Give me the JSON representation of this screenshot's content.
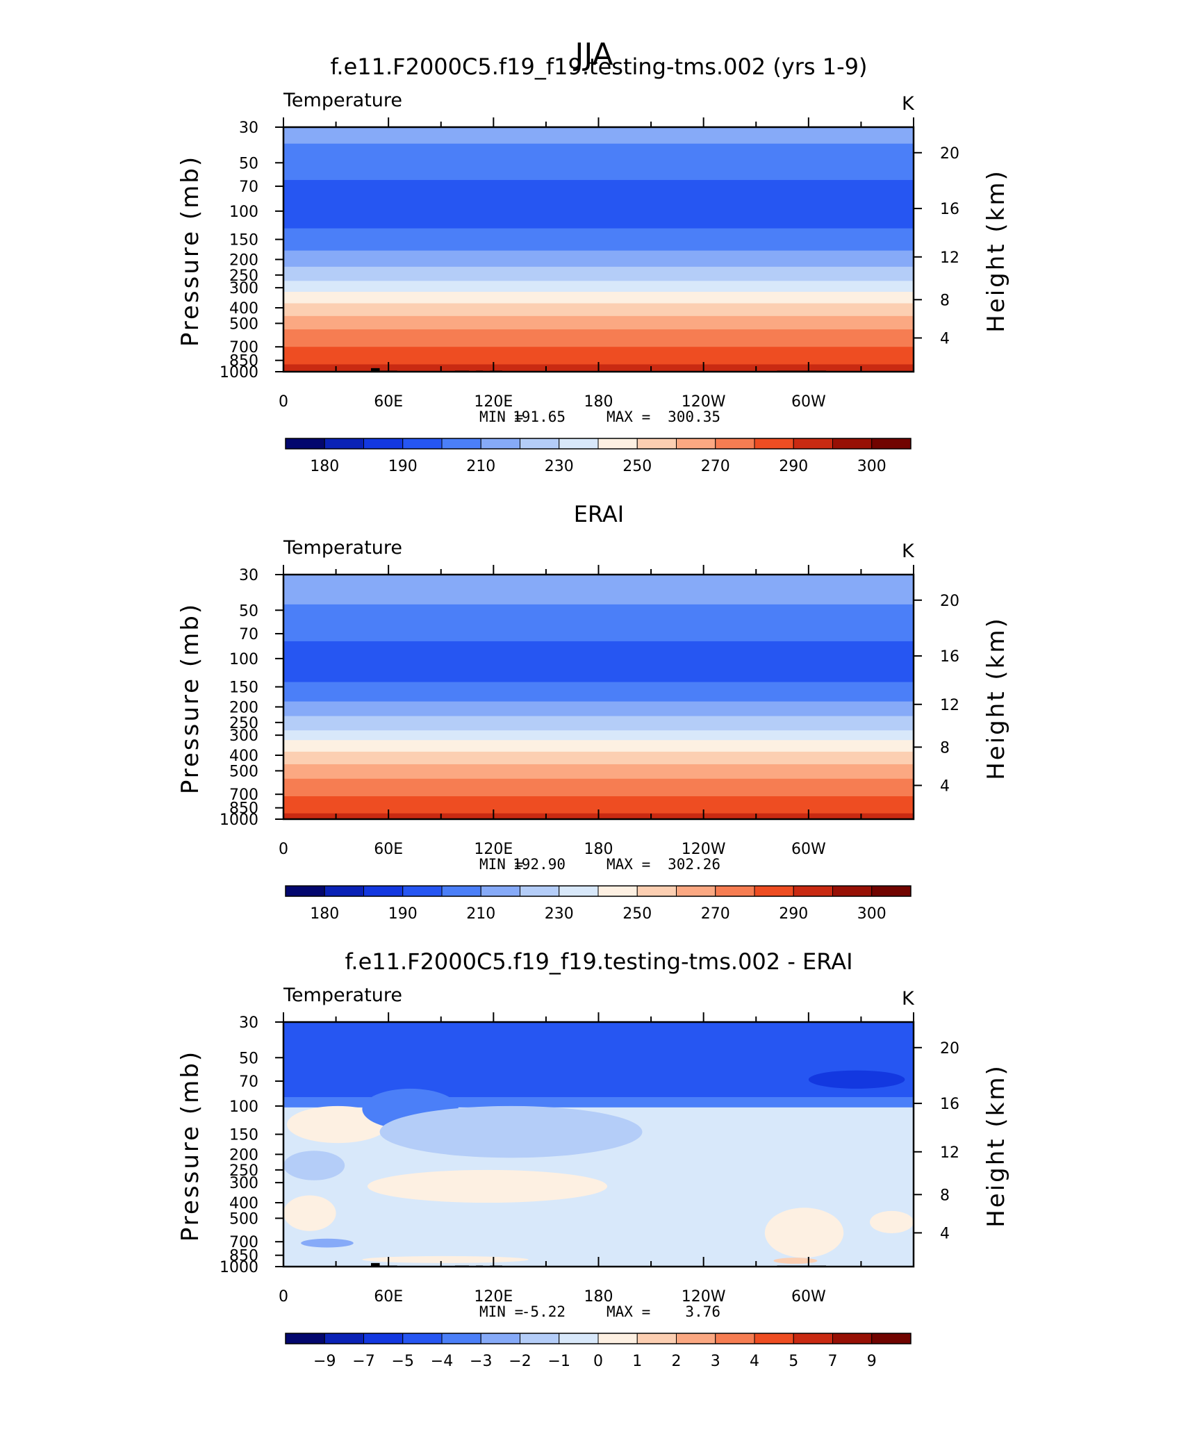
{
  "figure_title": "JJA",
  "chart_data": [
    {
      "type": "heatmap",
      "title": "f.e11.F2000C5.f19_f19.testing-tms.002 (yrs 1-9)",
      "variable": "Temperature",
      "units": "K",
      "ylabel": "Pressure (mb)",
      "ylabel_right": "Height (km)",
      "x_ticks": [
        "0",
        "60E",
        "120E",
        "180",
        "120W",
        "60W"
      ],
      "y_ticks": [
        "30",
        "50",
        "70",
        "100",
        "150",
        "200",
        "250",
        "300",
        "400",
        "500",
        "700",
        "850",
        "1000"
      ],
      "height_ticks": [
        "20",
        "16",
        "12",
        "8",
        "4"
      ],
      "ylim": [
        1000,
        30
      ],
      "xlim": [
        0,
        360
      ],
      "log_scale": true,
      "min_label": "MIN =",
      "min_value": "191.65",
      "max_label": "MAX =",
      "max_value": "300.35",
      "colorbar_labels": [
        "180",
        "190",
        "210",
        "230",
        "250",
        "270",
        "290",
        "300"
      ],
      "colorbar_colors": [
        "#03076e",
        "#0a22b6",
        "#1338e0",
        "#2656f2",
        "#4b7ff8",
        "#86aaf8",
        "#b4cdf8",
        "#d8e8fa",
        "#fdf0e2",
        "#fccfb2",
        "#fba882",
        "#f67d52",
        "#ee4d22",
        "#c92a12",
        "#971005",
        "#710400"
      ],
      "layers": [
        {
          "p": 30,
          "color": "#86aaf8"
        },
        {
          "p": 38,
          "color": "#4b7ff8"
        },
        {
          "p": 64,
          "color": "#2656f2"
        },
        {
          "p": 128,
          "color": "#4b7ff8"
        },
        {
          "p": 176,
          "color": "#86aaf8"
        },
        {
          "p": 222,
          "color": "#b4cdf8"
        },
        {
          "p": 272,
          "color": "#d8e8fa"
        },
        {
          "p": 318,
          "color": "#fdf0e2"
        },
        {
          "p": 375,
          "color": "#fccfb2"
        },
        {
          "p": 450,
          "color": "#fba882"
        },
        {
          "p": 545,
          "color": "#f67d52"
        },
        {
          "p": 700,
          "color": "#ee4d22"
        },
        {
          "p": 900,
          "color": "#c92a12"
        }
      ],
      "topography_blocks": [
        [
          15,
          50,
          990
        ],
        [
          50,
          55,
          950
        ],
        [
          55,
          65,
          985
        ],
        [
          98,
          106,
          985
        ],
        [
          110,
          114,
          985
        ],
        [
          118,
          125,
          985
        ],
        [
          282,
          310,
          985
        ]
      ]
    },
    {
      "type": "heatmap",
      "title": "ERAI",
      "variable": "Temperature",
      "units": "K",
      "ylabel": "Pressure (mb)",
      "ylabel_right": "Height (km)",
      "x_ticks": [
        "0",
        "60E",
        "120E",
        "180",
        "120W",
        "60W"
      ],
      "y_ticks": [
        "30",
        "50",
        "70",
        "100",
        "150",
        "200",
        "250",
        "300",
        "400",
        "500",
        "700",
        "850",
        "1000"
      ],
      "height_ticks": [
        "20",
        "16",
        "12",
        "8",
        "4"
      ],
      "ylim": [
        1000,
        30
      ],
      "xlim": [
        0,
        360
      ],
      "log_scale": true,
      "min_label": "MIN =",
      "min_value": "192.90",
      "max_label": "MAX =",
      "max_value": "302.26",
      "colorbar_labels": [
        "180",
        "190",
        "210",
        "230",
        "250",
        "270",
        "290",
        "300"
      ],
      "colorbar_colors": [
        "#03076e",
        "#0a22b6",
        "#1338e0",
        "#2656f2",
        "#4b7ff8",
        "#86aaf8",
        "#b4cdf8",
        "#d8e8fa",
        "#fdf0e2",
        "#fccfb2",
        "#fba882",
        "#f67d52",
        "#ee4d22",
        "#c92a12",
        "#971005",
        "#710400"
      ],
      "layers": [
        {
          "p": 30,
          "color": "#86aaf8"
        },
        {
          "p": 46,
          "color": "#4b7ff8"
        },
        {
          "p": 78,
          "color": "#2656f2"
        },
        {
          "p": 140,
          "color": "#4b7ff8"
        },
        {
          "p": 185,
          "color": "#86aaf8"
        },
        {
          "p": 228,
          "color": "#b4cdf8"
        },
        {
          "p": 280,
          "color": "#d8e8fa"
        },
        {
          "p": 322,
          "color": "#fdf0e2"
        },
        {
          "p": 380,
          "color": "#fccfb2"
        },
        {
          "p": 455,
          "color": "#fba882"
        },
        {
          "p": 560,
          "color": "#f67d52"
        },
        {
          "p": 720,
          "color": "#ee4d22"
        },
        {
          "p": 920,
          "color": "#c92a12"
        }
      ],
      "topography_blocks": []
    },
    {
      "type": "heatmap",
      "title": "f.e11.F2000C5.f19_f19.testing-tms.002 - ERAI",
      "variable": "Temperature",
      "units": "K",
      "ylabel": "Pressure (mb)",
      "ylabel_right": "Height (km)",
      "x_ticks": [
        "0",
        "60E",
        "120E",
        "180",
        "120W",
        "60W"
      ],
      "y_ticks": [
        "30",
        "50",
        "70",
        "100",
        "150",
        "200",
        "250",
        "300",
        "400",
        "500",
        "700",
        "850",
        "1000"
      ],
      "height_ticks": [
        "20",
        "16",
        "12",
        "8",
        "4"
      ],
      "ylim": [
        1000,
        30
      ],
      "xlim": [
        0,
        360
      ],
      "log_scale": true,
      "min_label": "MIN =",
      "min_value": "-5.22",
      "max_label": "MAX =",
      "max_value": "3.76",
      "colorbar_labels": [
        "−9",
        "−7",
        "−5",
        "−4",
        "−3",
        "−2",
        "−1",
        "0",
        "1",
        "2",
        "3",
        "4",
        "5",
        "7",
        "9"
      ],
      "colorbar_colors": [
        "#03076e",
        "#0a22b6",
        "#1338e0",
        "#2656f2",
        "#4b7ff8",
        "#86aaf8",
        "#b4cdf8",
        "#d8e8fa",
        "#fdf0e2",
        "#fccfb2",
        "#fba882",
        "#f67d52",
        "#ee4d22",
        "#c92a12",
        "#971005",
        "#710400"
      ],
      "layers": [
        {
          "p": 30,
          "color": "#2656f2"
        },
        {
          "p": 88,
          "color": "#4b7ff8"
        },
        {
          "p": 102,
          "color": "#d8e8fa"
        }
      ],
      "blobs": [
        {
          "x": [
            2,
            60
          ],
          "p": [
            100,
            170
          ],
          "color": "#fdf0e2"
        },
        {
          "x": [
            45,
            100
          ],
          "p": [
            78,
            140
          ],
          "color": "#4b7ff8"
        },
        {
          "x": [
            55,
            205
          ],
          "p": [
            100,
            210
          ],
          "color": "#b4cdf8"
        },
        {
          "x": [
            0,
            35
          ],
          "p": [
            190,
            290
          ],
          "color": "#b4cdf8"
        },
        {
          "x": [
            48,
            185
          ],
          "p": [
            250,
            400
          ],
          "color": "#fdf0e2"
        },
        {
          "x": [
            0,
            30
          ],
          "p": [
            360,
            600
          ],
          "color": "#fdf0e2"
        },
        {
          "x": [
            275,
            320
          ],
          "p": [
            430,
            880
          ],
          "color": "#fdf0e2"
        },
        {
          "x": [
            335,
            360
          ],
          "p": [
            450,
            620
          ],
          "color": "#fdf0e2"
        },
        {
          "x": [
            10,
            40
          ],
          "p": [
            670,
            760
          ],
          "color": "#86aaf8"
        },
        {
          "x": [
            45,
            140
          ],
          "p": [
            860,
            950
          ],
          "color": "#fdf0e2"
        },
        {
          "x": [
            280,
            305
          ],
          "p": [
            880,
            960
          ],
          "color": "#fccfb2"
        },
        {
          "x": [
            300,
            355
          ],
          "p": [
            60,
            78
          ],
          "color": "#1338e0"
        }
      ],
      "topography_blocks": [
        [
          15,
          50,
          990
        ],
        [
          50,
          55,
          950
        ],
        [
          55,
          65,
          985
        ],
        [
          98,
          106,
          985
        ],
        [
          110,
          114,
          985
        ],
        [
          118,
          125,
          985
        ],
        [
          282,
          310,
          985
        ]
      ]
    }
  ]
}
